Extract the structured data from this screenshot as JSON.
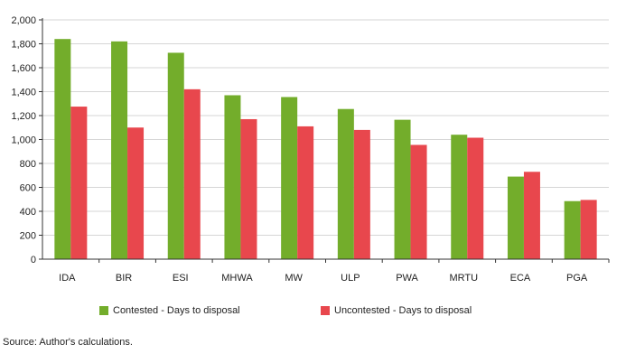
{
  "chart_data": {
    "type": "bar",
    "categories": [
      "IDA",
      "BIR",
      "ESI",
      "MHWA",
      "MW",
      "ULP",
      "PWA",
      "MRTU",
      "ECA",
      "PGA"
    ],
    "series": [
      {
        "name": "Contested - Days to disposal",
        "color": "#73ad2b",
        "values": [
          1840,
          1820,
          1725,
          1370,
          1355,
          1255,
          1165,
          1040,
          690,
          485
        ]
      },
      {
        "name": "Uncontested - Days to disposal",
        "color": "#e8474d",
        "values": [
          1275,
          1100,
          1420,
          1170,
          1110,
          1080,
          955,
          1015,
          730,
          495
        ]
      }
    ],
    "title": "",
    "xlabel": "",
    "ylabel": "",
    "ylim": [
      0,
      2000
    ],
    "yticks": [
      "0",
      "200",
      "400",
      "600",
      "800",
      "1,000",
      "1,200",
      "1,400",
      "1,600",
      "1,800",
      "2,000"
    ],
    "grid": true,
    "legend_position": "bottom"
  },
  "source": "Source: Author's calculations."
}
